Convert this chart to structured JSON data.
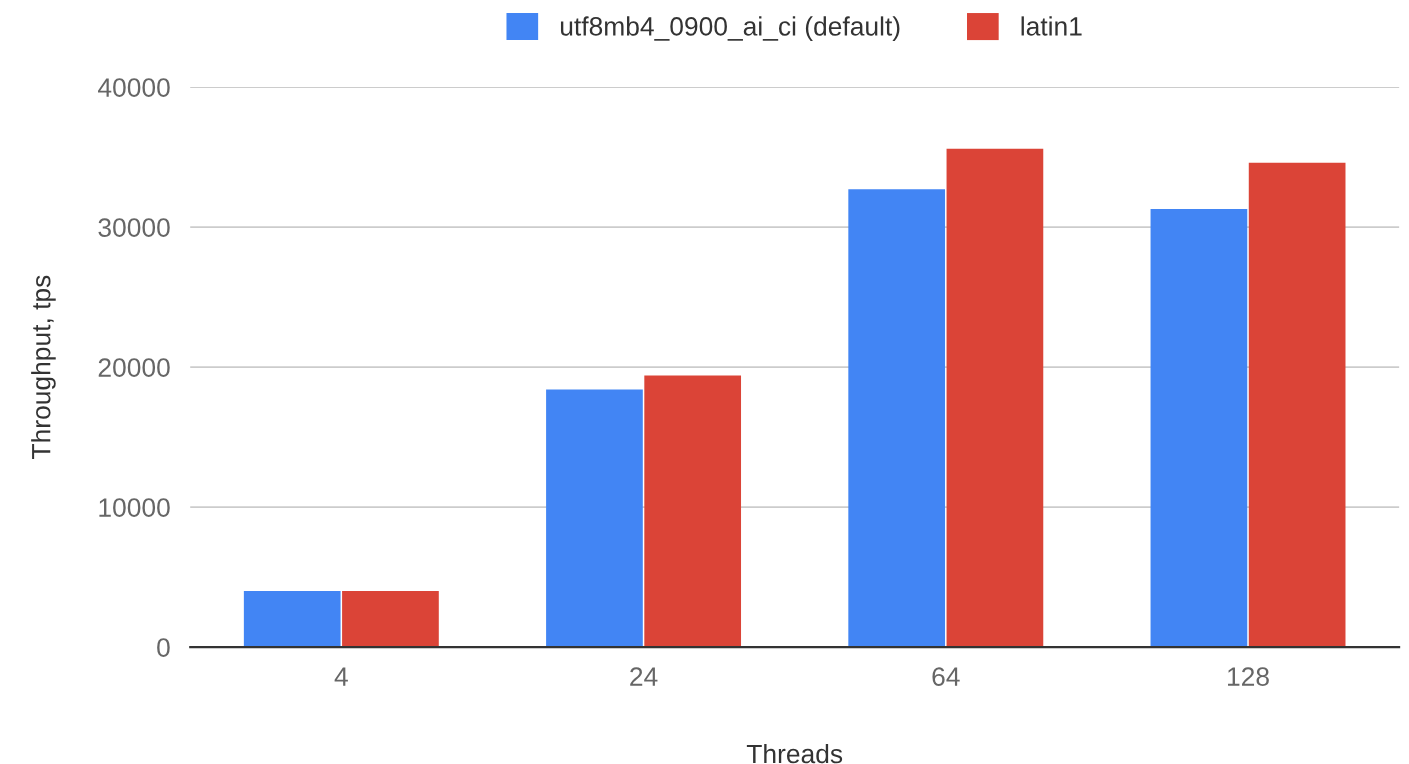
{
  "chart_data": {
    "type": "bar",
    "xlabel": "Threads",
    "ylabel": "Throughput, tps",
    "categories": [
      "4",
      "24",
      "64",
      "128"
    ],
    "series": [
      {
        "name": "utf8mb4_0900_ai_ci (default)",
        "color": "#4285f4",
        "values": [
          4000,
          18400,
          32700,
          31300
        ]
      },
      {
        "name": "latin1",
        "color": "#db4437",
        "values": [
          4000,
          19400,
          35600,
          34600
        ]
      }
    ],
    "ylim": [
      0,
      40000
    ],
    "yticks": [
      0,
      10000,
      20000,
      30000,
      40000
    ],
    "grid": "y",
    "legend": "top"
  }
}
